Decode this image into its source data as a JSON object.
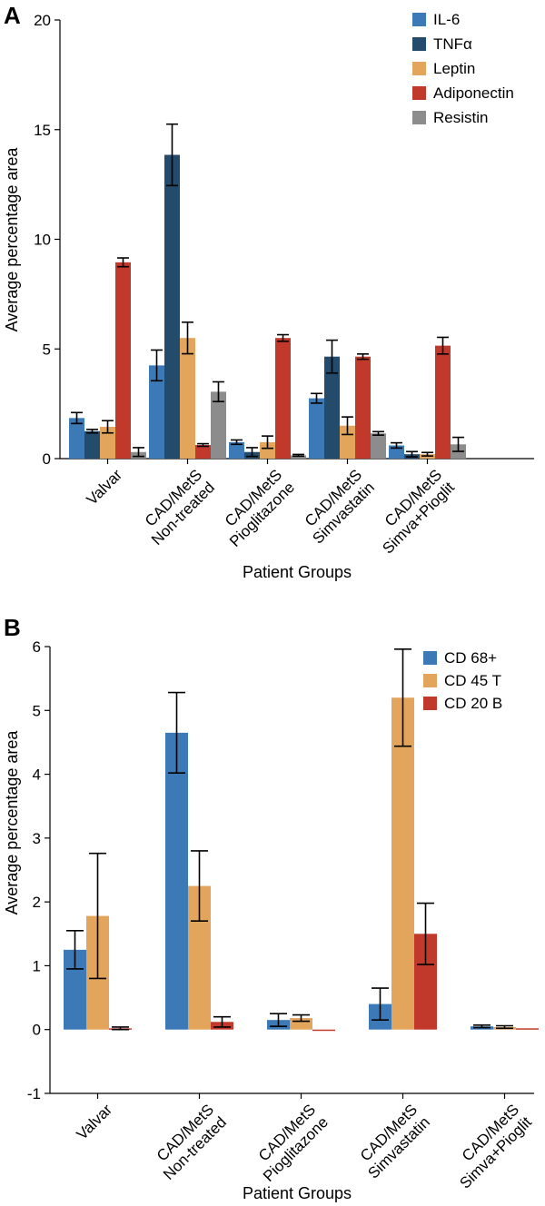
{
  "chart_data": [
    {
      "panel": "A",
      "type": "bar",
      "title": "",
      "xlabel": "Patient Groups",
      "ylabel": "Average percentage area",
      "ylim": [
        0,
        20
      ],
      "yticks": [
        0,
        5,
        10,
        15,
        20
      ],
      "legend_position": "top-right",
      "categories": [
        [
          "Valvar"
        ],
        [
          "CAD/MetS",
          "Non-treated"
        ],
        [
          "CAD/MetS",
          "Pioglitazone"
        ],
        [
          "CAD/MetS",
          "Simvastatin"
        ],
        [
          "CAD/MetS",
          "Simva+Pioglit"
        ]
      ],
      "series": [
        {
          "name": "IL-6",
          "color": "#3b7ab6",
          "values": [
            1.85,
            4.25,
            0.75,
            2.75,
            0.6
          ],
          "errors": [
            0.25,
            0.7,
            0.1,
            0.22,
            0.12
          ]
        },
        {
          "name": "TNFα",
          "color": "#234b6b",
          "values": [
            1.25,
            13.85,
            0.3,
            4.65,
            0.2
          ],
          "errors": [
            0.08,
            1.4,
            0.2,
            0.75,
            0.12
          ]
        },
        {
          "name": "Leptin",
          "color": "#e3a55c",
          "values": [
            1.45,
            5.5,
            0.75,
            1.5,
            0.2
          ],
          "errors": [
            0.28,
            0.72,
            0.28,
            0.4,
            0.08
          ]
        },
        {
          "name": "Adiponectin",
          "color": "#c0392b",
          "values": [
            8.95,
            0.62,
            5.5,
            4.65,
            5.15
          ],
          "errors": [
            0.2,
            0.06,
            0.15,
            0.12,
            0.38
          ]
        },
        {
          "name": "Resistin",
          "color": "#8c8c8c",
          "values": [
            0.3,
            3.05,
            0.15,
            1.15,
            0.65
          ],
          "errors": [
            0.2,
            0.45,
            0.04,
            0.08,
            0.32
          ]
        }
      ]
    },
    {
      "panel": "B",
      "type": "bar",
      "title": "",
      "xlabel": "Patient Groups",
      "ylabel": "Average percentage area",
      "ylim": [
        -1,
        6
      ],
      "yticks": [
        -1,
        0,
        1,
        2,
        3,
        4,
        5,
        6
      ],
      "legend_position": "top-right",
      "categories": [
        [
          "Valvar"
        ],
        [
          "CAD/MetS",
          "Non-treated"
        ],
        [
          "CAD/MetS",
          "Pioglitazone"
        ],
        [
          "CAD/MetS",
          "Simvastatin"
        ],
        [
          "CAD/MetS",
          "Simva+Pioglit"
        ]
      ],
      "series": [
        {
          "name": "CD 68+",
          "color": "#3b7ab6",
          "values": [
            1.25,
            4.65,
            0.15,
            0.4,
            0.05
          ],
          "errors": [
            0.3,
            0.63,
            0.1,
            0.25,
            0.02
          ]
        },
        {
          "name": "CD 45 T",
          "color": "#e3a55c",
          "values": [
            1.78,
            2.25,
            0.18,
            5.2,
            0.04
          ],
          "errors": [
            0.98,
            0.55,
            0.05,
            0.76,
            0.02
          ]
        },
        {
          "name": "CD 20 B",
          "color": "#c0392b",
          "values": [
            0.02,
            0.12,
            0.0,
            1.5,
            0.02
          ],
          "errors": [
            0.02,
            0.08,
            0.0,
            0.48,
            0.0
          ]
        }
      ]
    }
  ]
}
